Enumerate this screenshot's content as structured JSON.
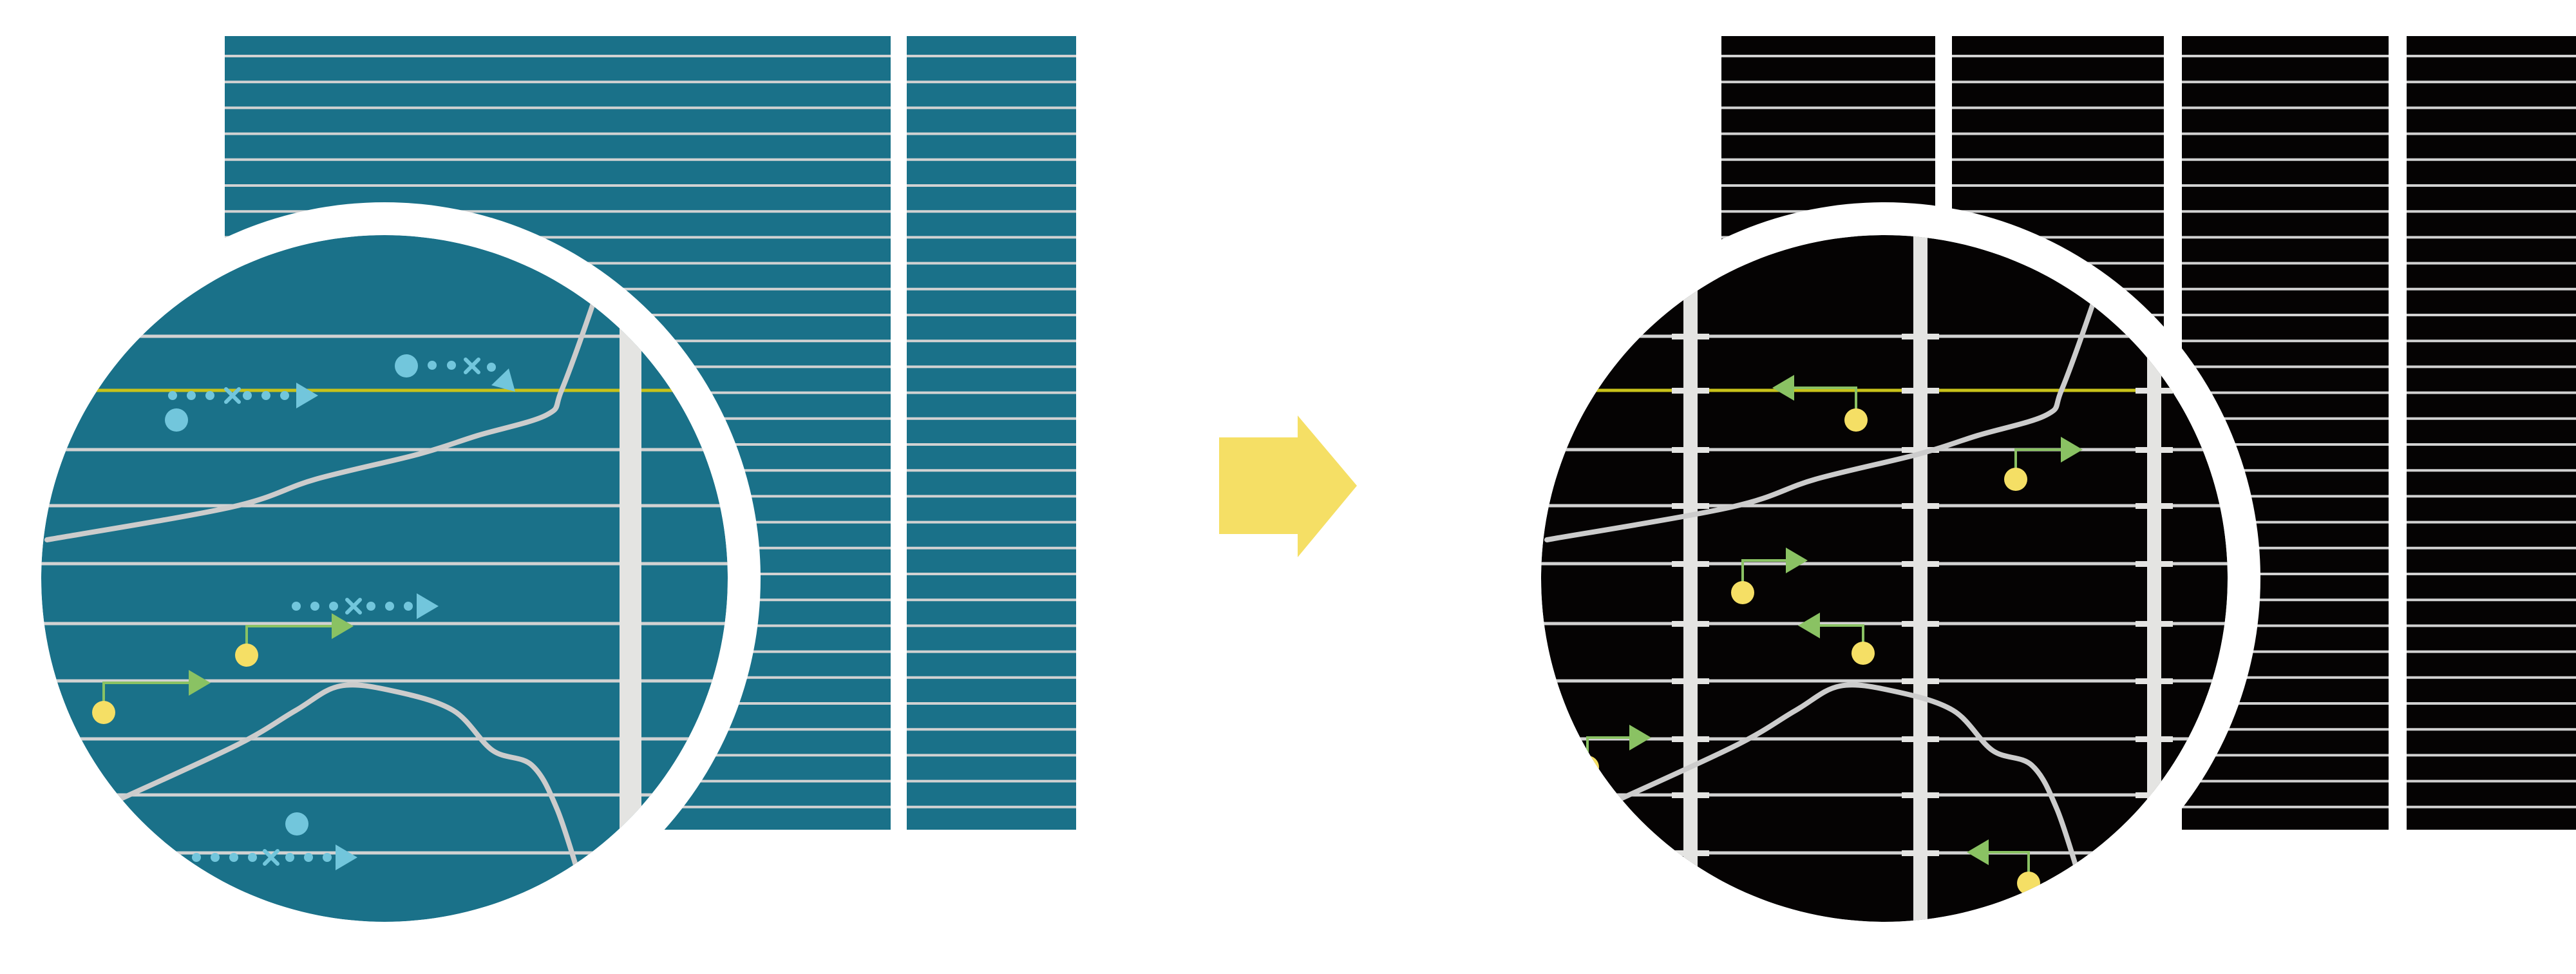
{
  "colors": {
    "background": "#ffffff",
    "before_panel": "#1a7189",
    "after_panel": "#050303",
    "grid_line": "#d2d2d2",
    "highlight_line": "#c8c21a",
    "divider_bar": "#e4e4e2",
    "curve": "#cccccc",
    "dotted_arrow": "#72c6dc",
    "step_arrow": "#8ac263",
    "marker_dot": "#f5df65",
    "transition_arrow": "#f5df65"
  },
  "icons": {
    "transition": "right-arrow-icon",
    "marker": "circle-icon",
    "direction": "triangle-arrow-icon"
  }
}
